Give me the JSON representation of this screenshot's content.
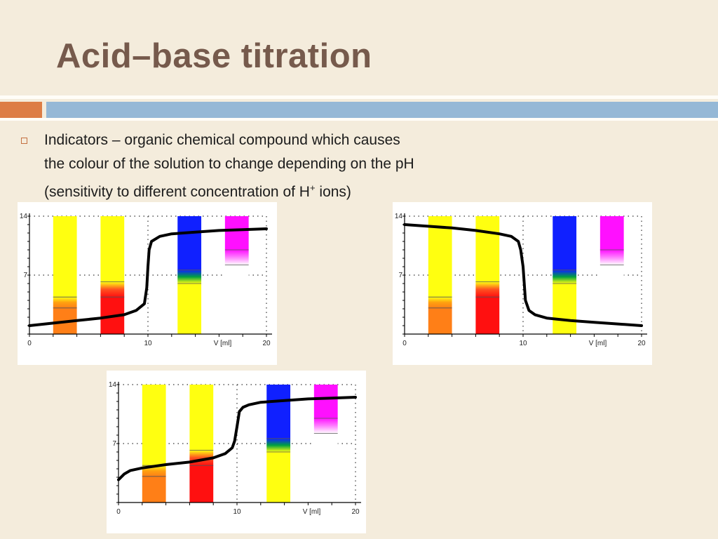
{
  "slide": {
    "title": "Acid–base titration",
    "bullet_line1": "Indicators – organic chemical compound which causes",
    "bullet_line2": "the colour of the solution to change depending on the pH",
    "bullet_line3_pre": "(sensitivity to different concentration of H",
    "bullet_line3_sup": "+",
    "bullet_line3_post": " ions)"
  },
  "colors": {
    "background": "#f4ecdc",
    "title": "#765a4c",
    "accent_orange": "#dd7d45",
    "accent_blue": "#95b8d6"
  },
  "chart_data": [
    {
      "type": "line",
      "description_id": "strong-acid-titrated-with-base",
      "x_tick_labels": [
        "0",
        "10",
        "V [ml]",
        "20"
      ],
      "y_tick_labels": [
        "7",
        "14"
      ],
      "xlim": [
        0,
        20
      ],
      "ylim": [
        0,
        14
      ],
      "curve": {
        "x": [
          0,
          2,
          4,
          6,
          8,
          9,
          9.7,
          9.9,
          10.0,
          10.1,
          10.3,
          11,
          12,
          14,
          16,
          18,
          20
        ],
        "y": [
          1.0,
          1.3,
          1.6,
          1.9,
          2.3,
          2.8,
          3.6,
          5.5,
          8.0,
          10.0,
          11.0,
          11.6,
          11.9,
          12.1,
          12.3,
          12.4,
          12.5
        ]
      },
      "indicator_bands": [
        {
          "indicator": "methyl-orange",
          "x_range": [
            2,
            4
          ],
          "colors": [
            "#ff7f17",
            "#ffa010",
            "#ffff10"
          ],
          "transition_ph": [
            3.1,
            4.4
          ]
        },
        {
          "indicator": "methyl-red",
          "x_range": [
            6,
            8
          ],
          "colors": [
            "#ff1010",
            "#ff5020",
            "#ffff10"
          ],
          "transition_ph": [
            4.4,
            6.2
          ]
        },
        {
          "indicator": "bromothymol-blue",
          "x_range": [
            12.5,
            14.5
          ],
          "colors": [
            "#ffff10",
            "#00a040",
            "#1020ff"
          ],
          "transition_ph": [
            6.0,
            7.6
          ]
        },
        {
          "indicator": "phenolphthalein",
          "x_range": [
            16.5,
            18.5
          ],
          "colors": [
            "#ffffff",
            "#ff80ff",
            "#ff10ff"
          ],
          "transition_ph": [
            8.2,
            10.0
          ]
        }
      ]
    },
    {
      "type": "line",
      "description_id": "strong-base-titrated-with-acid",
      "x_tick_labels": [
        "0",
        "10",
        "V [ml]",
        "20"
      ],
      "y_tick_labels": [
        "7",
        "14"
      ],
      "xlim": [
        0,
        20
      ],
      "ylim": [
        0,
        14
      ],
      "curve": {
        "x": [
          0,
          2,
          4,
          6,
          8,
          9,
          9.6,
          9.8,
          10.0,
          10.2,
          10.5,
          11,
          12,
          14,
          16,
          18,
          20
        ],
        "y": [
          13.0,
          12.8,
          12.6,
          12.3,
          11.9,
          11.6,
          11.0,
          10.0,
          8.0,
          4.0,
          2.8,
          2.3,
          1.9,
          1.6,
          1.4,
          1.2,
          1.0
        ]
      },
      "indicator_bands": [
        {
          "indicator": "methyl-orange",
          "x_range": [
            2,
            4
          ],
          "colors": [
            "#ff7f17",
            "#ffa010",
            "#ffff10"
          ],
          "transition_ph": [
            3.1,
            4.4
          ]
        },
        {
          "indicator": "methyl-red",
          "x_range": [
            6,
            8
          ],
          "colors": [
            "#ff1010",
            "#ff5020",
            "#ffff10"
          ],
          "transition_ph": [
            4.4,
            6.2
          ]
        },
        {
          "indicator": "bromothymol-blue",
          "x_range": [
            12.5,
            14.5
          ],
          "colors": [
            "#ffff10",
            "#00a040",
            "#1020ff"
          ],
          "transition_ph": [
            6.0,
            7.6
          ]
        },
        {
          "indicator": "phenolphthalein",
          "x_range": [
            16.5,
            18.5
          ],
          "colors": [
            "#ffffff",
            "#ff80ff",
            "#ff10ff"
          ],
          "transition_ph": [
            8.2,
            10.0
          ]
        }
      ]
    },
    {
      "type": "line",
      "description_id": "weak-acid-titrated-with-base",
      "x_tick_labels": [
        "0",
        "10",
        "V [ml]",
        "20"
      ],
      "y_tick_labels": [
        "7",
        "14"
      ],
      "xlim": [
        0,
        20
      ],
      "ylim": [
        0,
        14
      ],
      "curve": {
        "x": [
          0,
          0.5,
          1,
          2,
          4,
          6,
          8,
          9,
          9.6,
          9.8,
          10.0,
          10.2,
          10.5,
          11,
          12,
          14,
          16,
          18,
          20
        ],
        "y": [
          2.7,
          3.4,
          3.8,
          4.1,
          4.5,
          4.8,
          5.3,
          5.8,
          6.5,
          7.3,
          9.0,
          10.8,
          11.3,
          11.6,
          11.9,
          12.1,
          12.3,
          12.4,
          12.5
        ]
      },
      "indicator_bands": [
        {
          "indicator": "methyl-orange",
          "x_range": [
            2,
            4
          ],
          "colors": [
            "#ff7f17",
            "#ffa010",
            "#ffff10"
          ],
          "transition_ph": [
            3.1,
            4.4
          ]
        },
        {
          "indicator": "methyl-red",
          "x_range": [
            6,
            8
          ],
          "colors": [
            "#ff1010",
            "#ff5020",
            "#ffff10"
          ],
          "transition_ph": [
            4.4,
            6.2
          ]
        },
        {
          "indicator": "bromothymol-blue",
          "x_range": [
            12.5,
            14.5
          ],
          "colors": [
            "#ffff10",
            "#00a040",
            "#1020ff"
          ],
          "transition_ph": [
            6.0,
            7.6
          ]
        },
        {
          "indicator": "phenolphthalein",
          "x_range": [
            16.5,
            18.5
          ],
          "colors": [
            "#ffffff",
            "#ff80ff",
            "#ff10ff"
          ],
          "transition_ph": [
            8.2,
            10.0
          ]
        }
      ]
    }
  ]
}
